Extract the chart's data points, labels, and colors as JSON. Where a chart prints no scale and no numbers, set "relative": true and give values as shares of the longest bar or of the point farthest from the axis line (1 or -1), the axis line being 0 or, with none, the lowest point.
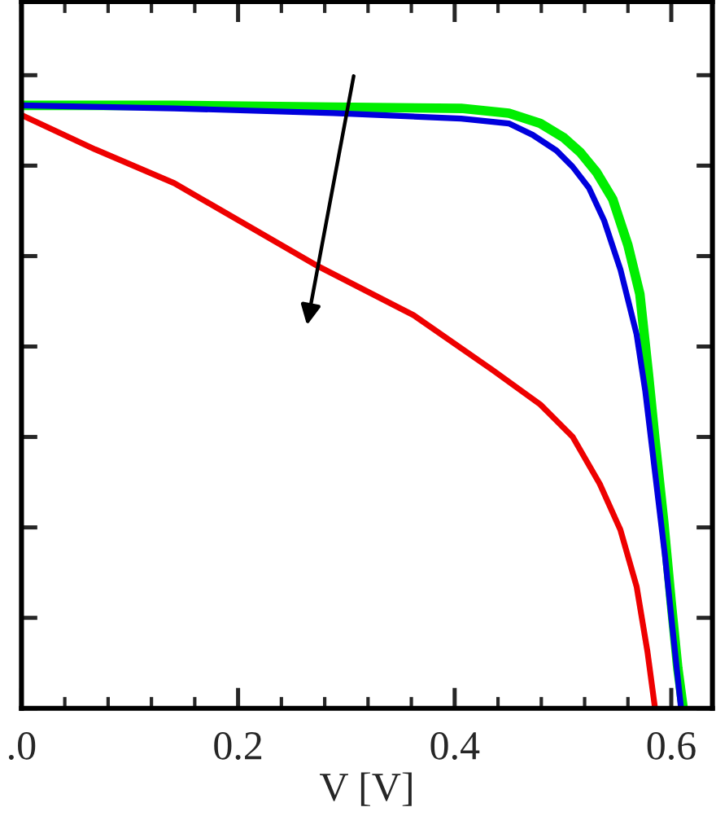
{
  "chart_data": {
    "type": "line",
    "relative": true,
    "xlabel": "V [V]",
    "xlim": [
      0,
      0.638
    ],
    "xticks": [
      {
        "value": 0,
        "label": ".0"
      },
      0.2,
      0.4,
      0.6
    ],
    "tick_labels": "x",
    "grid": false,
    "legend": false,
    "marker": "none",
    "line_style": "solid",
    "series": [
      {
        "color": "#00ee00",
        "x": [
          0,
          0.141,
          0.288,
          0.406,
          0.45,
          0.479,
          0.501,
          0.516,
          0.531,
          0.546,
          0.56,
          0.571,
          0.579,
          0.585,
          0.593,
          0.6,
          0.606,
          0.611
        ],
        "values": [
          1.0,
          1.0,
          0.997,
          0.995,
          0.987,
          0.97,
          0.946,
          0.922,
          0.889,
          0.844,
          0.768,
          0.687,
          0.553,
          0.445,
          0.31,
          0.175,
          0.067,
          0
        ]
      },
      {
        "color": "#0000dd",
        "x": [
          0,
          0.141,
          0.288,
          0.406,
          0.45,
          0.472,
          0.494,
          0.509,
          0.524,
          0.538,
          0.553,
          0.568,
          0.576,
          0.585,
          0.594,
          0.601,
          0.609
        ],
        "values": [
          1.0,
          0.995,
          0.987,
          0.978,
          0.97,
          0.951,
          0.925,
          0.898,
          0.863,
          0.809,
          0.728,
          0.62,
          0.526,
          0.391,
          0.256,
          0.135,
          0
        ]
      },
      {
        "color": "#ee0000",
        "x": [
          0,
          0.068,
          0.141,
          0.274,
          0.362,
          0.435,
          0.479,
          0.509,
          0.534,
          0.553,
          0.568,
          0.578,
          0.585
        ],
        "values": [
          0.984,
          0.927,
          0.871,
          0.733,
          0.652,
          0.561,
          0.504,
          0.45,
          0.372,
          0.296,
          0.202,
          0.094,
          0
        ]
      }
    ]
  }
}
